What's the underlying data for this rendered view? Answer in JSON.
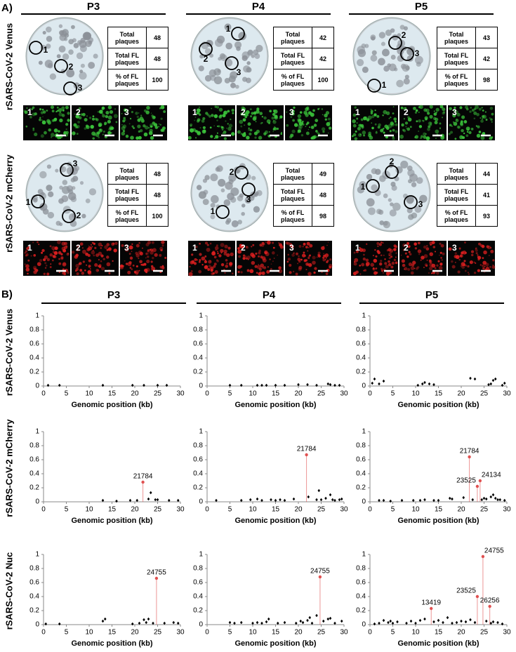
{
  "panel_a": {
    "label": "A)",
    "columns": [
      "P3",
      "P4",
      "P5"
    ],
    "rows": [
      {
        "label": "rSARS-CoV-2 Venus",
        "image_color": "#3cc83c",
        "cells": [
          {
            "plate_marks": [
              "1",
              "2",
              "3"
            ],
            "table": [
              [
                "Total plaques",
                48
              ],
              [
                "Total FL plaques",
                48
              ],
              [
                "% of FL plaques",
                100
              ]
            ],
            "images": [
              "1",
              "2",
              "3"
            ]
          },
          {
            "plate_marks": [
              "1",
              "2",
              "3"
            ],
            "table": [
              [
                "Total plaques",
                42
              ],
              [
                "Total FL plaques",
                42
              ],
              [
                "% of FL plaques",
                100
              ]
            ],
            "images": [
              "1",
              "2",
              "3"
            ]
          },
          {
            "plate_marks": [
              "1",
              "2",
              "3"
            ],
            "table": [
              [
                "Total plaques",
                43
              ],
              [
                "Total FL plaques",
                42
              ],
              [
                "% of FL plaques",
                98
              ]
            ],
            "images": [
              "1",
              "2",
              "3"
            ]
          }
        ]
      },
      {
        "label": "rSARS-CoV-2 mCherry",
        "image_color": "#e02020",
        "cells": [
          {
            "plate_marks": [
              "1",
              "2",
              "3"
            ],
            "table": [
              [
                "Total plaques",
                48
              ],
              [
                "Total FL plaques",
                48
              ],
              [
                "% of FL plaques",
                100
              ]
            ],
            "images": [
              "1",
              "2",
              "3"
            ]
          },
          {
            "plate_marks": [
              "1",
              "2",
              "3"
            ],
            "table": [
              [
                "Total plaques",
                49
              ],
              [
                "Total FL plaques",
                48
              ],
              [
                "% of FL plaques",
                98
              ]
            ],
            "images": [
              "1",
              "2",
              "3"
            ]
          },
          {
            "plate_marks": [
              "1",
              "2",
              "3"
            ],
            "table": [
              [
                "Total plaques",
                44
              ],
              [
                "Total FL plaques",
                41
              ],
              [
                "% of FL plaques",
                93
              ]
            ],
            "images": [
              "1",
              "2",
              "3"
            ]
          }
        ]
      }
    ]
  },
  "panel_b": {
    "label": "B)",
    "columns": [
      "P3",
      "P4",
      "P5"
    ],
    "rows": [
      "rSARS-CoV-2 Venus",
      "rSARS-CoV-2 mCherry",
      "rSARS-CoV-2 Nuc"
    ]
  },
  "chart_data": [
    {
      "type": "scatter",
      "xlabel": "Genomic position (kb)",
      "xlim": [
        0,
        30
      ],
      "xticks": [
        0,
        5,
        10,
        15,
        20,
        25,
        30
      ],
      "ylim": [
        0,
        1
      ],
      "yticks": [
        0,
        0.2,
        0.4,
        0.6,
        0.8,
        1
      ],
      "series": [
        {
          "color": "#000000",
          "x": [
            1,
            3.5,
            13,
            19.5,
            22,
            25,
            27
          ],
          "values": [
            0.01,
            0.01,
            0.01,
            0.01,
            0.01,
            0.01,
            0.01
          ]
        }
      ]
    },
    {
      "type": "scatter",
      "xlabel": "Genomic position (kb)",
      "xlim": [
        0,
        30
      ],
      "xticks": [
        0,
        5,
        10,
        15,
        20,
        25,
        30
      ],
      "ylim": [
        0,
        1
      ],
      "yticks": [
        0,
        0.2,
        0.4,
        0.6,
        0.8,
        1
      ],
      "series": [
        {
          "color": "#000000",
          "x": [
            5,
            7.5,
            11,
            12,
            13,
            15,
            17,
            20,
            22,
            24,
            26.5,
            27,
            28,
            29
          ],
          "values": [
            0.01,
            0.01,
            0.01,
            0.01,
            0.01,
            0.01,
            0.01,
            0.02,
            0.02,
            0.01,
            0.03,
            0.02,
            0.01,
            0.01
          ]
        }
      ]
    },
    {
      "type": "scatter",
      "xlabel": "Genomic position (kb)",
      "xlim": [
        0,
        30
      ],
      "xticks": [
        0,
        5,
        10,
        15,
        20,
        25,
        30
      ],
      "ylim": [
        0,
        1
      ],
      "yticks": [
        0,
        0.2,
        0.4,
        0.6,
        0.8,
        1
      ],
      "series": [
        {
          "color": "#000000",
          "x": [
            0.5,
            1,
            2,
            3,
            10.5,
            11.5,
            12,
            13,
            14,
            22,
            23,
            26,
            26.5,
            27,
            27.5,
            29,
            29.5
          ],
          "values": [
            0.04,
            0.1,
            0.03,
            0.07,
            0.01,
            0.03,
            0.05,
            0.03,
            0.02,
            0.11,
            0.1,
            0.02,
            0.03,
            0.08,
            0.1,
            0.01,
            0.04
          ]
        }
      ]
    },
    {
      "type": "scatter",
      "xlabel": "Genomic position (kb)",
      "xlim": [
        0,
        30
      ],
      "xticks": [
        0,
        5,
        10,
        15,
        20,
        25,
        30
      ],
      "ylim": [
        0,
        1
      ],
      "yticks": [
        0,
        0.2,
        0.4,
        0.6,
        0.8,
        1
      ],
      "series": [
        {
          "color": "#000000",
          "x": [
            13,
            16,
            19,
            20.5,
            23,
            23.5,
            24.5,
            25,
            27.5,
            29.5
          ],
          "values": [
            0.02,
            0.01,
            0.02,
            0.02,
            0.04,
            0.13,
            0.03,
            0.03,
            0.02,
            0.02
          ]
        },
        {
          "color": "#e05050",
          "x": [
            21.784
          ],
          "values": [
            0.28
          ],
          "x_labels": [
            "21784"
          ]
        }
      ]
    },
    {
      "type": "scatter",
      "xlabel": "Genomic position (kb)",
      "xlim": [
        0,
        30
      ],
      "xticks": [
        0,
        5,
        10,
        15,
        20,
        25,
        30
      ],
      "ylim": [
        0,
        1
      ],
      "yticks": [
        0,
        0.2,
        0.4,
        0.6,
        0.8,
        1
      ],
      "series": [
        {
          "color": "#000000",
          "x": [
            2,
            7.5,
            9.5,
            11,
            12,
            14,
            15,
            16,
            17,
            19,
            22.2,
            24,
            24.5,
            25,
            26,
            27,
            27.5,
            28,
            29,
            29.5
          ],
          "values": [
            0.02,
            0.02,
            0.03,
            0.04,
            0.02,
            0.03,
            0.02,
            0.03,
            0.02,
            0.04,
            0.07,
            0.03,
            0.16,
            0.03,
            0.05,
            0.1,
            0.03,
            0.02,
            0.03,
            0.04
          ]
        },
        {
          "color": "#e05050",
          "x": [
            21.784
          ],
          "values": [
            0.67
          ],
          "x_labels": [
            "21784"
          ]
        }
      ]
    },
    {
      "type": "scatter",
      "xlabel": "Genomic position (kb)",
      "xlim": [
        0,
        30
      ],
      "xticks": [
        0,
        5,
        10,
        15,
        20,
        25,
        30
      ],
      "ylim": [
        0,
        1
      ],
      "yticks": [
        0,
        0.2,
        0.4,
        0.6,
        0.8,
        1
      ],
      "series": [
        {
          "color": "#000000",
          "x": [
            2,
            3,
            4.5,
            7,
            9.5,
            11,
            12,
            14,
            15,
            17.5,
            18,
            20.5,
            22.5,
            24.5,
            25,
            25.5,
            26.5,
            27,
            27.5,
            28,
            28.5,
            29.5
          ],
          "values": [
            0.02,
            0.02,
            0.01,
            0.02,
            0.02,
            0.02,
            0.03,
            0.02,
            0.02,
            0.05,
            0.04,
            0.06,
            0.03,
            0.03,
            0.05,
            0.04,
            0.07,
            0.1,
            0.05,
            0.03,
            0.03,
            0.02
          ]
        },
        {
          "color": "#e05050",
          "x": [
            21.784,
            23.525,
            24.134
          ],
          "values": [
            0.64,
            0.22,
            0.3
          ],
          "x_labels": [
            "21784",
            "23525",
            "24134"
          ]
        }
      ]
    },
    {
      "type": "scatter",
      "xlabel": "Genomic position (kb)",
      "xlim": [
        0,
        30
      ],
      "xticks": [
        0,
        5,
        10,
        15,
        20,
        25,
        30
      ],
      "ylim": [
        0,
        1
      ],
      "yticks": [
        0,
        0.2,
        0.4,
        0.6,
        0.8,
        1
      ],
      "series": [
        {
          "color": "#000000",
          "x": [
            0.5,
            3.5,
            13,
            13.5,
            19.5,
            21,
            22,
            22.5,
            23,
            24,
            26.5,
            28.5,
            29.5
          ],
          "values": [
            0.01,
            0.01,
            0.05,
            0.08,
            0.01,
            0.02,
            0.07,
            0.03,
            0.08,
            0.02,
            0.02,
            0.03,
            0.02
          ]
        },
        {
          "color": "#e05050",
          "x": [
            24.755
          ],
          "values": [
            0.66
          ],
          "x_labels": [
            "24755"
          ]
        }
      ]
    },
    {
      "type": "scatter",
      "xlabel": "Genomic position (kb)",
      "xlim": [
        0,
        30
      ],
      "xticks": [
        0,
        5,
        10,
        15,
        20,
        25,
        30
      ],
      "ylim": [
        0,
        1
      ],
      "yticks": [
        0,
        0.2,
        0.4,
        0.6,
        0.8,
        1
      ],
      "series": [
        {
          "color": "#000000",
          "x": [
            5,
            6,
            7.5,
            10,
            11,
            12,
            13,
            13.5,
            15.5,
            17,
            19.5,
            20.5,
            21,
            22,
            22.5,
            23,
            24,
            25.5,
            26.5,
            27,
            28,
            29.5
          ],
          "values": [
            0.03,
            0.02,
            0.03,
            0.02,
            0.03,
            0.02,
            0.04,
            0.08,
            0.02,
            0.03,
            0.02,
            0.05,
            0.03,
            0.06,
            0.1,
            0.02,
            0.13,
            0.05,
            0.08,
            0.09,
            0.02,
            0.05
          ]
        },
        {
          "color": "#e05050",
          "x": [
            24.755
          ],
          "values": [
            0.68
          ],
          "x_labels": [
            "24755"
          ]
        }
      ]
    },
    {
      "type": "scatter",
      "xlabel": "Genomic position (kb)",
      "xlim": [
        0,
        30
      ],
      "xticks": [
        0,
        5,
        10,
        15,
        20,
        25,
        30
      ],
      "ylim": [
        0,
        1
      ],
      "yticks": [
        0,
        0.2,
        0.4,
        0.6,
        0.8,
        1
      ],
      "series": [
        {
          "color": "#000000",
          "x": [
            1,
            2,
            3,
            4,
            4.5,
            5,
            6,
            8,
            9,
            10,
            11,
            12,
            14,
            15,
            16,
            17,
            18,
            19,
            20,
            21,
            22,
            23,
            25.5,
            26.5,
            27,
            28,
            29
          ],
          "values": [
            0.01,
            0.02,
            0.06,
            0.03,
            0.05,
            0.02,
            0.04,
            0.02,
            0.05,
            0.02,
            0.06,
            0.08,
            0.04,
            0.06,
            0.03,
            0.1,
            0.02,
            0.03,
            0.05,
            0.04,
            0.07,
            0.03,
            0.05,
            0.02,
            0.04,
            0.03,
            0.01
          ]
        },
        {
          "color": "#e05050",
          "x": [
            13.419,
            23.525,
            24.755,
            26.256
          ],
          "values": [
            0.23,
            0.4,
            0.97,
            0.26
          ],
          "x_labels": [
            "13419",
            "23525",
            "24755",
            "26256"
          ]
        }
      ]
    }
  ]
}
